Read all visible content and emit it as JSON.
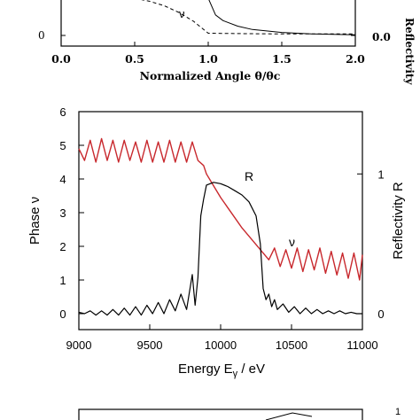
{
  "chart_data": [
    {
      "type": "line",
      "xlabel": "Normalized Angle θ/θc",
      "ylabel_left": "",
      "ylabel_right": "Reflectivity",
      "xlim": [
        0.0,
        2.0
      ],
      "x_ticks": [
        "0.0",
        "0.5",
        "1.0",
        "1.5",
        "2.0"
      ],
      "y_left_ticks": [
        "0"
      ],
      "y_right_ticks": [
        "0.0"
      ],
      "annotations": [
        {
          "text": "ν"
        }
      ],
      "series": [
        {
          "style": "solid",
          "x": [
            1.0,
            1.05,
            1.1,
            1.2,
            1.3,
            1.5,
            1.7,
            2.0
          ],
          "y": [
            1.0,
            0.55,
            0.4,
            0.25,
            0.16,
            0.08,
            0.04,
            0.02
          ]
        },
        {
          "style": "dashed",
          "x": [
            0.5,
            0.6,
            0.7,
            0.8,
            0.9,
            1.0,
            1.2,
            1.5,
            2.0
          ],
          "y": [
            1.0,
            0.92,
            0.8,
            0.62,
            0.38,
            0.06,
            0.05,
            0.04,
            0.04
          ]
        }
      ]
    },
    {
      "type": "line",
      "xlabel": "Energy E",
      "xlabel_sub": "γ",
      "xlabel_unit": " / eV",
      "ylabel_left": "Phase ν",
      "ylabel_right": "Reflectivity R",
      "xlim": [
        9000,
        11000
      ],
      "ylim_left": [
        0,
        6
      ],
      "ylim_right": [
        -0.05,
        1.25
      ],
      "x_ticks": [
        "9000",
        "9500",
        "10000",
        "10500",
        "11000"
      ],
      "y_left_ticks": [
        "0",
        "1",
        "2",
        "3",
        "4",
        "5",
        "6"
      ],
      "y_right_ticks": [
        "0",
        "1"
      ],
      "annotations": [
        {
          "text": "R",
          "near": "reflectivity peak"
        },
        {
          "text": "ν",
          "near": "phase curve, right side"
        }
      ],
      "colors": {
        "phase": "#c8282d",
        "reflectivity": "#000000"
      },
      "series": [
        {
          "name": "ν",
          "color": "#c8282d",
          "x": [
            9000,
            9040,
            9080,
            9120,
            9160,
            9200,
            9240,
            9280,
            9320,
            9360,
            9400,
            9440,
            9480,
            9520,
            9560,
            9600,
            9640,
            9680,
            9720,
            9760,
            9800,
            9840,
            9880,
            9900,
            9950,
            10000,
            10050,
            10100,
            10150,
            10200,
            10250,
            10300,
            10340,
            10380,
            10420,
            10460,
            10500,
            10540,
            10580,
            10620,
            10660,
            10700,
            10740,
            10780,
            10820,
            10860,
            10900,
            10940,
            10980,
            11000
          ],
          "y": [
            4.9,
            4.55,
            5.15,
            4.5,
            5.2,
            4.55,
            5.15,
            4.5,
            5.15,
            4.55,
            5.1,
            4.5,
            5.15,
            4.5,
            5.1,
            4.5,
            5.15,
            4.5,
            5.1,
            4.5,
            5.1,
            4.55,
            4.4,
            4.15,
            3.8,
            3.45,
            3.15,
            2.85,
            2.55,
            2.3,
            2.05,
            1.8,
            1.6,
            1.95,
            1.4,
            1.9,
            1.35,
            1.95,
            1.25,
            1.9,
            1.3,
            1.95,
            1.2,
            1.85,
            1.15,
            1.8,
            1.05,
            1.8,
            1.0,
            1.75
          ]
        },
        {
          "name": "R",
          "color": "#000000",
          "x": [
            9000,
            9040,
            9080,
            9120,
            9160,
            9200,
            9240,
            9280,
            9320,
            9360,
            9400,
            9440,
            9480,
            9520,
            9560,
            9600,
            9640,
            9680,
            9720,
            9760,
            9800,
            9820,
            9840,
            9860,
            9880,
            9900,
            9950,
            10000,
            10050,
            10100,
            10150,
            10200,
            10250,
            10280,
            10300,
            10320,
            10340,
            10360,
            10380,
            10400,
            10440,
            10480,
            10520,
            10560,
            10600,
            10640,
            10680,
            10720,
            10760,
            10800,
            10840,
            10880,
            10920,
            10960,
            11000
          ],
          "y": [
            0.01,
            0.0,
            0.02,
            -0.01,
            0.02,
            -0.01,
            0.03,
            -0.01,
            0.04,
            -0.01,
            0.05,
            -0.01,
            0.06,
            0.0,
            0.08,
            0.0,
            0.1,
            0.02,
            0.14,
            0.03,
            0.28,
            0.06,
            0.26,
            0.7,
            0.82,
            0.92,
            0.94,
            0.93,
            0.91,
            0.88,
            0.85,
            0.8,
            0.7,
            0.5,
            0.18,
            0.1,
            0.14,
            0.05,
            0.1,
            0.03,
            0.07,
            0.01,
            0.05,
            0.0,
            0.04,
            0.0,
            0.03,
            0.0,
            0.02,
            0.0,
            0.02,
            0.0,
            0.01,
            0.0,
            0.0
          ]
        }
      ]
    },
    {
      "type": "line",
      "y_right_ticks": [
        "1"
      ],
      "note": "partially visible panel at bottom edge"
    }
  ]
}
